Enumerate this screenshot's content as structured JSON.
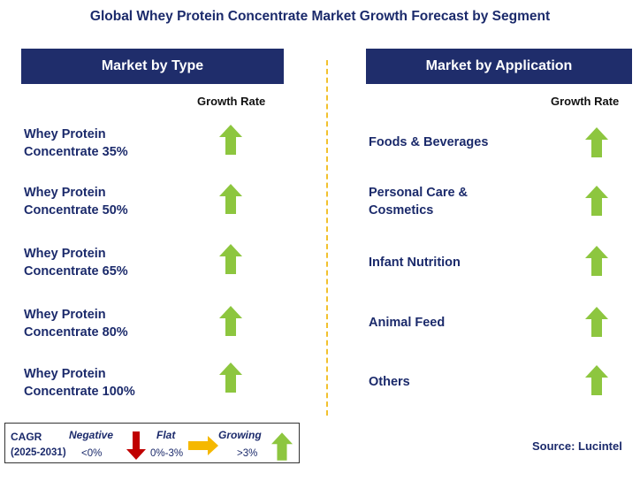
{
  "title": "Global Whey Protein Concentrate Market Growth Forecast by Segment",
  "left_panel": {
    "header": "Market by Type",
    "growth_label": "Growth Rate",
    "rows": [
      {
        "line1": "Whey Protein",
        "line2": "Concentrate 35%",
        "trend": "growing"
      },
      {
        "line1": "Whey Protein",
        "line2": "Concentrate 50%",
        "trend": "growing"
      },
      {
        "line1": "Whey Protein",
        "line2": "Concentrate 65%",
        "trend": "growing"
      },
      {
        "line1": "Whey Protein",
        "line2": "Concentrate 80%",
        "trend": "growing"
      },
      {
        "line1": "Whey Protein",
        "line2": "Concentrate 100%",
        "trend": "growing"
      }
    ]
  },
  "right_panel": {
    "header": "Market by Application",
    "growth_label": "Growth Rate",
    "rows": [
      {
        "line1": "Foods & Beverages",
        "line2": "",
        "trend": "growing"
      },
      {
        "line1": "Personal Care &",
        "line2": "Cosmetics",
        "trend": "growing"
      },
      {
        "line1": "Infant Nutrition",
        "line2": "",
        "trend": "growing"
      },
      {
        "line1": "Animal Feed",
        "line2": "",
        "trend": "growing"
      },
      {
        "line1": "Others",
        "line2": "",
        "trend": "growing"
      }
    ]
  },
  "legend": {
    "cagr": "CAGR",
    "period": "(2025-2031)",
    "negative_label": "Negative",
    "negative_range": "<0%",
    "flat_label": "Flat",
    "flat_range": "0%-3%",
    "growing_label": "Growing",
    "growing_range": ">3%"
  },
  "source": "Source: Lucintel",
  "colors": {
    "header_bg": "#1f2d6b",
    "text_navy": "#1b2a6b",
    "growing_arrow": "#8dc63f",
    "negative_arrow": "#c00000",
    "flat_arrow": "#f5b800",
    "divider": "#f2c12e"
  }
}
